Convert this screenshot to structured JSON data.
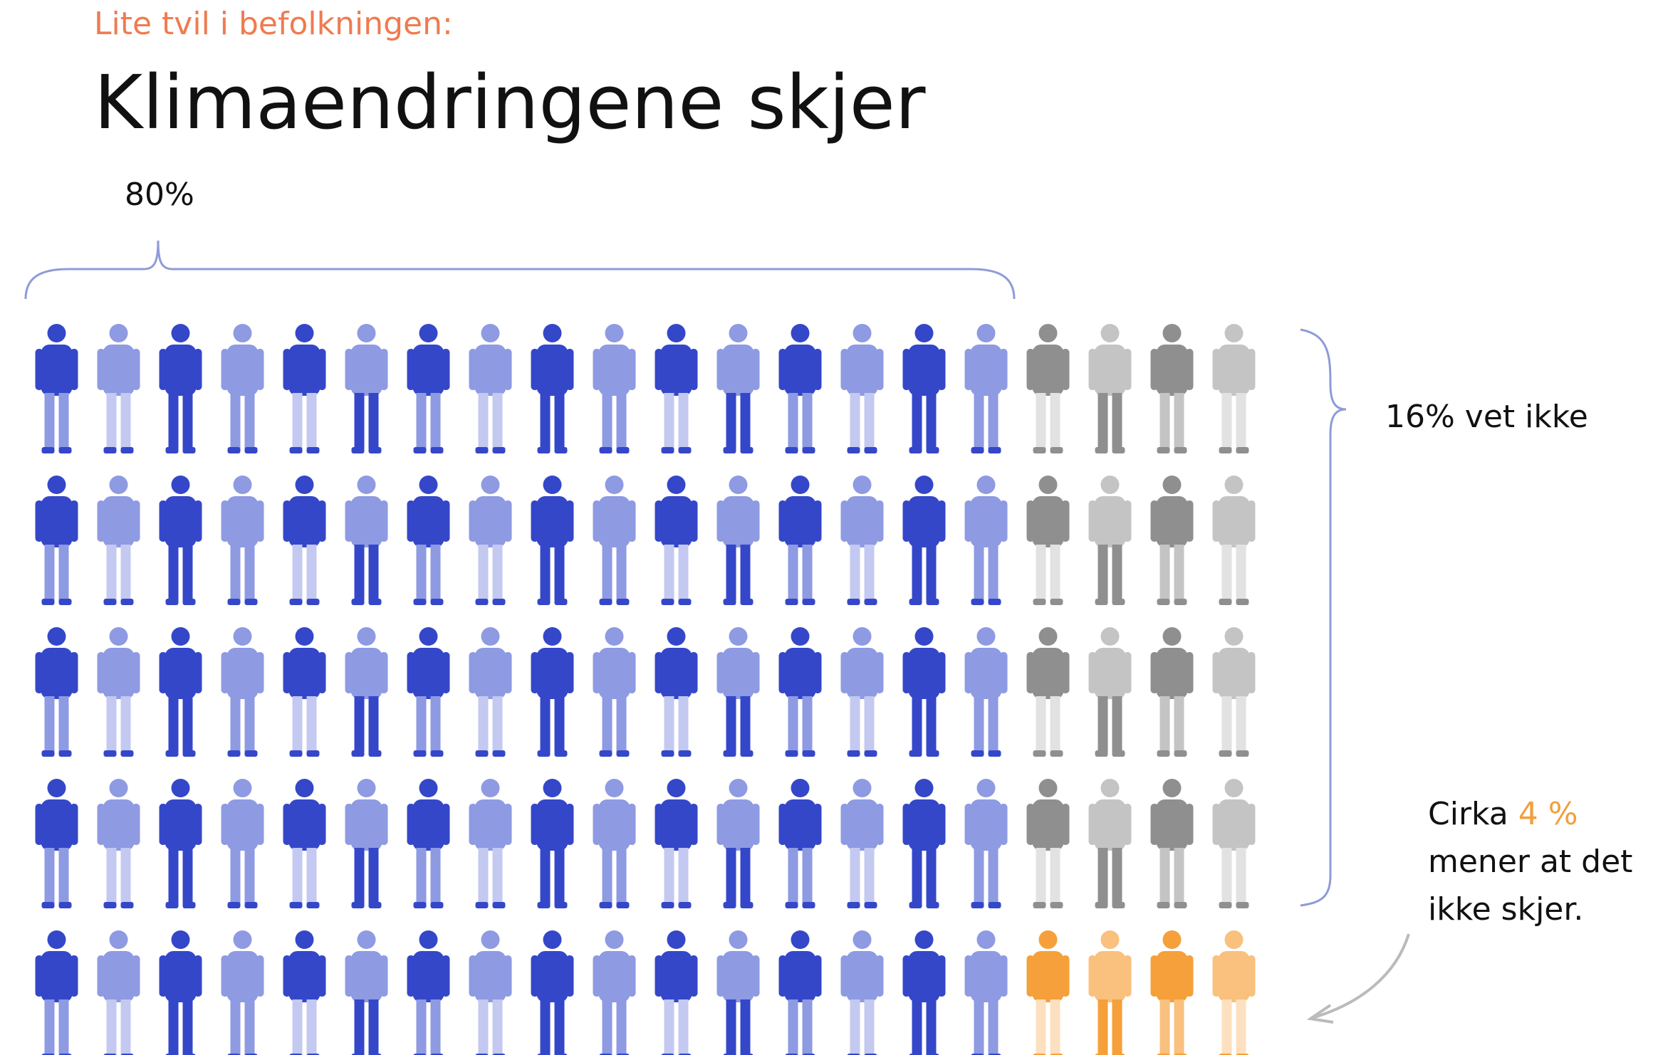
{
  "chart_data": {
    "type": "pictogram",
    "subtitle": "Lite tvil i befolkningen:",
    "title": "Klimaendringene skjer",
    "values": [
      80,
      16,
      4
    ],
    "value_labels": [
      "80%",
      "16%",
      "4 %"
    ],
    "annotations": [
      "vet ikke",
      "Cirka",
      "mener at det",
      "ikke skjer."
    ],
    "colors": [
      [
        "#3447c9",
        "#8e9ae2",
        "#c3c9f0"
      ],
      [
        "#8f8f8f",
        "#c4c4c4",
        "#e2e2e2"
      ],
      [
        "#f5a03a",
        "#f9c07e",
        "#fde0bf"
      ]
    ]
  }
}
